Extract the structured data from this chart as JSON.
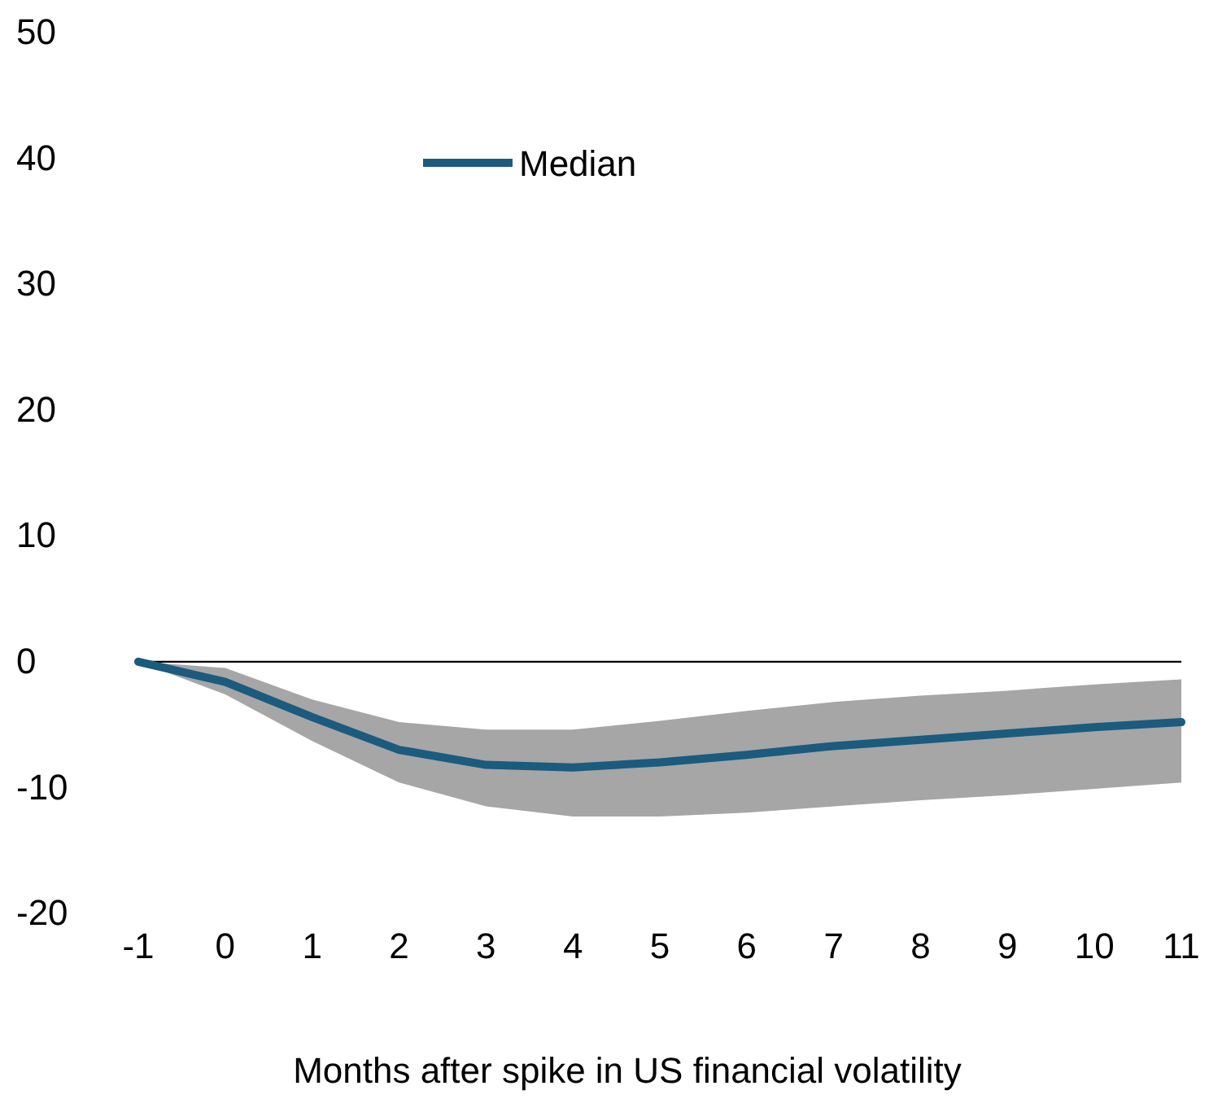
{
  "chart_data": {
    "type": "line",
    "xlabel": "Months after spike in US financial volatility",
    "x": [
      -1,
      0,
      1,
      2,
      3,
      4,
      5,
      6,
      7,
      8,
      9,
      10,
      11
    ],
    "xlim": [
      -1,
      11
    ],
    "xticks": [
      -1,
      0,
      1,
      2,
      3,
      4,
      5,
      6,
      7,
      8,
      9,
      10,
      11
    ],
    "ylim": [
      -20,
      50
    ],
    "yticks": [
      -20,
      -10,
      0,
      10,
      20,
      30,
      40,
      50
    ],
    "series": [
      {
        "name": "Median",
        "color": "#1b5b7e",
        "values": [
          0,
          -1.6,
          -4.4,
          -7.0,
          -8.2,
          -8.4,
          -8.0,
          -7.4,
          -6.7,
          -6.2,
          -5.7,
          -5.2,
          -4.8
        ],
        "lower": [
          0,
          -2.6,
          -6.3,
          -9.6,
          -11.5,
          -12.3,
          -12.3,
          -12.0,
          -11.5,
          -11.0,
          -10.6,
          -10.1,
          -9.6
        ],
        "upper": [
          0,
          -0.5,
          -3.0,
          -4.8,
          -5.4,
          -5.4,
          -4.7,
          -3.9,
          -3.2,
          -2.7,
          -2.3,
          -1.8,
          -1.4
        ]
      }
    ],
    "ref_lines": [
      {
        "axis": "y",
        "value": 0,
        "color": "#000000"
      }
    ],
    "legend": "top left",
    "grid": false
  }
}
